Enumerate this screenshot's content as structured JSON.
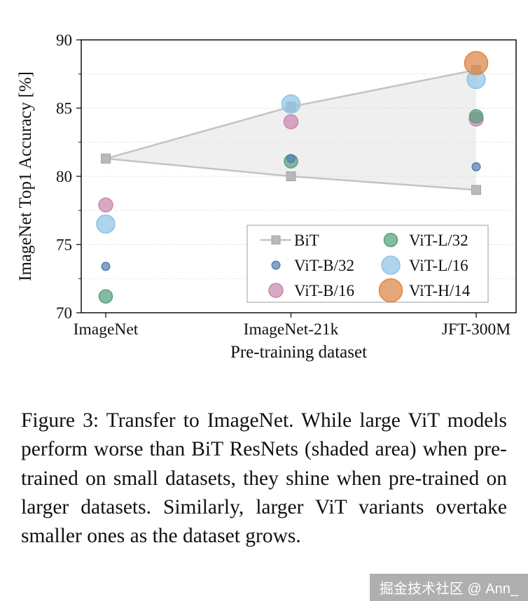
{
  "figure": {
    "caption": "Figure 3: Transfer to ImageNet. While large ViT models perform worse than BiT ResNets (shaded area) when pre-trained on small datasets, they shine when pre-trained on larger datasets. Similarly, larger ViT variants overtake smaller ones as the dataset grows."
  },
  "watermark": {
    "text": "掘金技术社区 @ Ann_"
  },
  "chart_data": {
    "type": "scatter",
    "title": "",
    "xlabel": "Pre-training dataset",
    "ylabel": "ImageNet Top1 Accuracy [%]",
    "categories": [
      "ImageNet",
      "ImageNet-21k",
      "JFT-300M"
    ],
    "ylim": [
      70,
      90
    ],
    "yticks": [
      70,
      75,
      80,
      85,
      90
    ],
    "minor_grid_step": 2.5,
    "grid": "dotted-horizontal",
    "legend_position": "lower-right",
    "band": {
      "name": "BiT",
      "upper": [
        81.3,
        85.1,
        87.8
      ],
      "lower": [
        81.3,
        80.0,
        79.0
      ],
      "line_color": "#c3c3c3",
      "fill_color": "#d8d8d8",
      "marker_color": "#b9b9b9"
    },
    "series": [
      {
        "name": "ViT-B/32",
        "values": [
          73.4,
          81.3,
          80.7
        ],
        "color": "#5580b2",
        "size": 5.8
      },
      {
        "name": "ViT-B/16",
        "values": [
          77.9,
          84.0,
          84.2
        ],
        "color": "#c987ad",
        "size": 10
      },
      {
        "name": "ViT-L/32",
        "values": [
          71.2,
          81.1,
          84.4
        ],
        "color": "#55a17d",
        "size": 9.5
      },
      {
        "name": "ViT-L/16",
        "values": [
          76.5,
          85.3,
          87.1
        ],
        "color": "#8fc3e8",
        "size": 13
      },
      {
        "name": "ViT-H/14",
        "values": [
          null,
          null,
          88.3
        ],
        "color": "#dd8544",
        "size": 16.5
      }
    ],
    "draw_order": [
      "ViT-L/16",
      "ViT-H/14",
      "ViT-B/16",
      "ViT-L/32",
      "ViT-B/32"
    ],
    "legend_columns": [
      [
        "BiT",
        "ViT-B/32",
        "ViT-B/16"
      ],
      [
        "ViT-L/32",
        "ViT-L/16",
        "ViT-H/14"
      ]
    ]
  }
}
